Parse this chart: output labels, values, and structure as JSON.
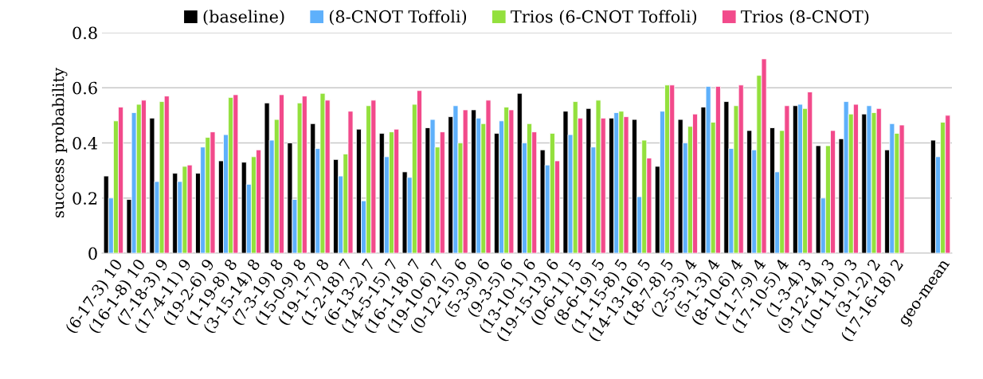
{
  "chart_data": {
    "type": "bar",
    "ylabel": "success probability",
    "categories": [
      "(6-17-3) 10",
      "(16-1-8) 10",
      "(7-18-3) 9",
      "(17-4-11) 9",
      "(19-2-6) 9",
      "(1-19-8) 8",
      "(3-15-14) 8",
      "(7-3-19) 8",
      "(15-0-9) 8",
      "(19-1-7) 8",
      "(1-2-18) 7",
      "(6-13-2) 7",
      "(14-5-15) 7",
      "(16-1-18) 7",
      "(19-10-6) 7",
      "(0-12-15) 6",
      "(5-3-9) 6",
      "(9-3-5) 6",
      "(13-10-1) 6",
      "(19-15-13) 6",
      "(0-6-11) 5",
      "(8-6-19) 5",
      "(11-15-8) 5",
      "(14-13-16) 5",
      "(18-7-8) 5",
      "(2-5-3) 4",
      "(5-1-3) 4",
      "(8-10-6) 4",
      "(11-7-9) 4",
      "(17-10-5) 4",
      "(1-3-4) 3",
      "(9-12-14) 3",
      "(10-11-0) 3",
      "(3-1-2) 2",
      "(17-16-18) 2",
      null,
      "geo-mean"
    ],
    "series": [
      {
        "name": "(baseline)",
        "color": "#000000",
        "values": [
          0.28,
          0.195,
          0.49,
          0.29,
          0.29,
          0.335,
          0.33,
          0.545,
          0.4,
          0.47,
          0.34,
          0.45,
          0.435,
          0.295,
          0.455,
          0.495,
          0.52,
          0.435,
          0.58,
          0.375,
          0.515,
          0.525,
          0.49,
          0.485,
          0.315,
          0.485,
          0.53,
          0.55,
          0.445,
          0.455,
          0.535,
          0.39,
          0.415,
          0.505,
          0.375,
          null,
          0.41
        ]
      },
      {
        "name": "(8-CNOT Toffoli)",
        "color": "#5eb0fb",
        "values": [
          0.2,
          0.51,
          0.26,
          0.26,
          0.385,
          0.43,
          0.25,
          0.41,
          0.195,
          0.38,
          0.28,
          0.19,
          0.35,
          0.275,
          0.485,
          0.535,
          0.49,
          0.48,
          0.4,
          0.32,
          0.43,
          0.385,
          0.51,
          0.205,
          0.515,
          0.4,
          0.605,
          0.38,
          0.375,
          0.295,
          0.54,
          0.2,
          0.55,
          0.535,
          0.47,
          null,
          0.35
        ]
      },
      {
        "name": "Trios (6-CNOT Toffoli)",
        "color": "#93e03d",
        "values": [
          0.48,
          0.54,
          0.55,
          0.315,
          0.42,
          0.565,
          0.35,
          0.485,
          0.545,
          0.58,
          0.36,
          0.535,
          0.44,
          0.54,
          0.385,
          0.4,
          0.47,
          0.53,
          0.47,
          0.435,
          0.55,
          0.555,
          0.515,
          0.41,
          0.61,
          0.46,
          0.475,
          0.535,
          0.645,
          0.445,
          0.525,
          0.39,
          0.505,
          0.51,
          0.435,
          null,
          0.475
        ]
      },
      {
        "name": "Trios (8-CNOT)",
        "color": "#f24a8b",
        "values": [
          0.53,
          0.555,
          0.57,
          0.32,
          0.44,
          0.575,
          0.375,
          0.575,
          0.57,
          0.555,
          0.515,
          0.555,
          0.45,
          0.59,
          0.44,
          0.52,
          0.555,
          0.52,
          0.44,
          0.335,
          0.49,
          0.49,
          0.495,
          0.345,
          0.61,
          0.505,
          0.605,
          0.61,
          0.705,
          0.535,
          0.585,
          0.445,
          0.54,
          0.525,
          0.465,
          null,
          0.5
        ]
      }
    ],
    "ylim": [
      0,
      0.8
    ],
    "yticks": [
      0,
      0.2,
      0.4,
      0.6,
      0.8
    ],
    "grid": "y",
    "legend": "top"
  }
}
